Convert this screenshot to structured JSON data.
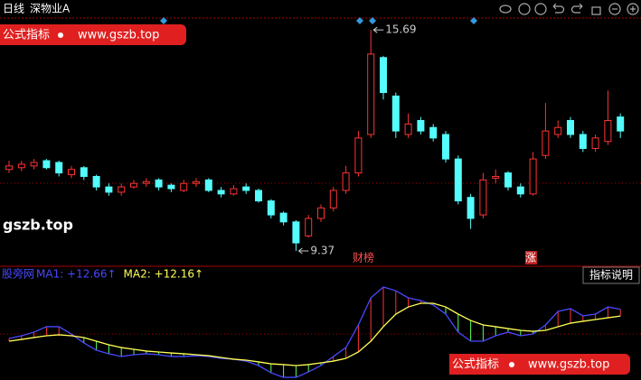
{
  "header": {
    "period": "日线",
    "stock": "深物业A"
  },
  "watermarks": {
    "top_name": "公式指标",
    "top_url": "www.gszb.top",
    "side_url": "gszb.top",
    "bottom_name": "公式指标",
    "bottom_url": "www.gszb.top"
  },
  "markers": {
    "news": "财榜",
    "rise": "涨"
  },
  "chart_data": [
    {
      "type": "candlestick",
      "up_color": "#ff3232",
      "down_color": "#54fcfc",
      "ylim": [
        9.06,
        16.03
      ],
      "open": [
        11.7,
        11.75,
        11.8,
        11.95,
        11.9,
        11.55,
        11.75,
        11.5,
        11.2,
        11.05,
        11.2,
        11.3,
        11.4,
        11.25,
        11.1,
        11.3,
        11.4,
        11.1,
        11.0,
        11.2,
        11.1,
        10.8,
        10.45,
        10.2,
        9.8,
        10.3,
        10.6,
        11.1,
        11.6,
        12.7,
        14.9,
        13.8,
        12.7,
        13.1,
        12.9,
        12.7,
        12.0,
        10.9,
        10.4,
        11.45,
        11.6,
        11.2,
        11.0,
        12.1,
        12.7,
        13.1,
        12.7,
        12.3,
        12.5,
        13.2
      ],
      "high": [
        11.95,
        11.95,
        12.0,
        12.0,
        11.95,
        11.8,
        11.8,
        11.55,
        11.3,
        11.3,
        11.4,
        11.45,
        11.45,
        11.3,
        11.4,
        11.45,
        11.45,
        11.2,
        11.25,
        11.3,
        11.15,
        10.85,
        10.5,
        10.25,
        10.4,
        10.7,
        11.2,
        11.8,
        12.8,
        15.69,
        14.95,
        13.9,
        13.3,
        13.2,
        13.0,
        12.8,
        12.1,
        11.0,
        11.6,
        11.7,
        11.65,
        11.3,
        12.2,
        13.6,
        13.1,
        13.2,
        12.8,
        12.7,
        13.96,
        13.3
      ],
      "low": [
        11.6,
        11.65,
        11.7,
        11.7,
        11.5,
        11.45,
        11.4,
        11.1,
        10.95,
        10.95,
        11.15,
        11.2,
        11.1,
        11.05,
        11.05,
        11.2,
        11.05,
        10.9,
        10.95,
        11.0,
        10.75,
        10.3,
        10.1,
        9.37,
        9.75,
        10.2,
        10.5,
        11.0,
        11.5,
        12.6,
        13.7,
        12.6,
        12.6,
        12.7,
        12.5,
        11.9,
        10.7,
        10.0,
        10.3,
        11.3,
        11.1,
        10.9,
        10.95,
        12.0,
        12.6,
        12.6,
        12.2,
        12.2,
        12.4,
        12.6
      ],
      "close": [
        11.8,
        11.85,
        11.9,
        11.75,
        11.6,
        11.7,
        11.5,
        11.2,
        11.05,
        11.2,
        11.3,
        11.35,
        11.2,
        11.15,
        11.3,
        11.35,
        11.1,
        11.0,
        11.15,
        11.1,
        10.8,
        10.4,
        10.2,
        9.6,
        10.3,
        10.6,
        11.1,
        11.6,
        12.6,
        15.0,
        13.9,
        12.8,
        13.0,
        12.8,
        12.6,
        12.0,
        10.8,
        10.3,
        11.4,
        11.5,
        11.2,
        11.0,
        12.0,
        12.8,
        12.9,
        12.7,
        12.3,
        12.6,
        13.1,
        12.8
      ]
    },
    {
      "type": "line",
      "title": "股旁网",
      "button": "指标说明",
      "ylim": [
        7.5,
        14.5
      ],
      "above_color": "#ff3232",
      "below_color": "#54ff54",
      "series": [
        {
          "label": "MA1: +12.66↑",
          "color": "#4848ff",
          "values": [
            10.5,
            10.7,
            10.97,
            11.37,
            11.37,
            10.83,
            10.17,
            9.63,
            9.37,
            9.17,
            9.3,
            9.37,
            9.3,
            9.17,
            9.17,
            9.23,
            9.17,
            9.03,
            8.97,
            8.83,
            8.5,
            7.97,
            7.63,
            7.63,
            8.03,
            8.5,
            9.17,
            9.83,
            11.5,
            13.5,
            14.3,
            14.03,
            13.5,
            13.3,
            12.97,
            12.3,
            10.97,
            10.3,
            10.3,
            10.7,
            10.97,
            10.7,
            10.83,
            11.5,
            12.5,
            12.7,
            12.17,
            12.3,
            12.83,
            12.66
          ]
        },
        {
          "label": "MA2: +12.16↑",
          "color": "#ffff54",
          "values": [
            10.3,
            10.43,
            10.57,
            10.7,
            10.77,
            10.7,
            10.57,
            10.3,
            10.03,
            9.83,
            9.7,
            9.57,
            9.5,
            9.43,
            9.37,
            9.3,
            9.23,
            9.1,
            8.97,
            8.9,
            8.77,
            8.63,
            8.57,
            8.5,
            8.57,
            8.7,
            8.83,
            9.03,
            9.5,
            10.3,
            11.37,
            12.3,
            12.83,
            13.1,
            13.1,
            12.83,
            12.3,
            11.83,
            11.5,
            11.37,
            11.23,
            11.1,
            11.03,
            11.1,
            11.37,
            11.63,
            11.77,
            11.9,
            12.03,
            12.16
          ]
        }
      ]
    }
  ]
}
